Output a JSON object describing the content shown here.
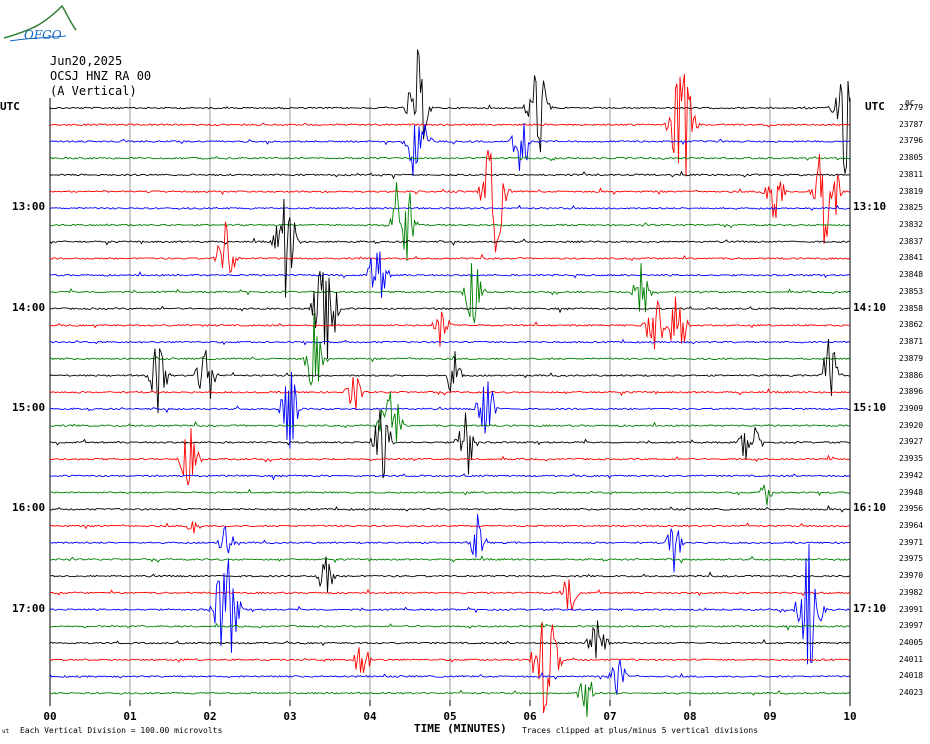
{
  "header": {
    "logo_text": "OFGO",
    "date": "Jun20,2025",
    "station": "OCSJ HNZ RA 00",
    "component": "(A Vertical)"
  },
  "utc_left": "UTC",
  "utc_right": "UTC",
  "footer": {
    "scale_note": "Each Vertical Division =  100.00 microvolts",
    "clip_note": "Traces clipped at plus/minus 5 vertical divisions",
    "corner_mark": "ut"
  },
  "colors": {
    "trace_cycle": [
      "#000000",
      "#ff0000",
      "#0000ff",
      "#008000"
    ],
    "grid": "#808080"
  },
  "chart_data": {
    "type": "line",
    "title": "Jun20,2025 OCSJ HNZ RA 00 (A Vertical)",
    "xlabel": "TIME (MINUTES)",
    "xlim": [
      0,
      10
    ],
    "x_ticks": [
      "00",
      "01",
      "02",
      "03",
      "04",
      "05",
      "06",
      "07",
      "08",
      "09",
      "10"
    ],
    "left_time_labels": [
      "13:00",
      "14:00",
      "15:00",
      "16:00",
      "17:00"
    ],
    "right_time_labels": [
      "13:10",
      "14:10",
      "15:10",
      "16:10",
      "17:10"
    ],
    "right_top_label": "0C",
    "trace_ids": [
      "23779",
      "23787",
      "23796",
      "23805",
      "23811",
      "23819",
      "23825",
      "23832",
      "23837",
      "23841",
      "23848",
      "23853",
      "23858",
      "23862",
      "23871",
      "23879",
      "23886",
      "23896",
      "23909",
      "23920",
      "23927",
      "23935",
      "23942",
      "23948",
      "23956",
      "23964",
      "23971",
      "23975",
      "23970",
      "23982",
      "23991",
      "23997",
      "24005",
      "24011",
      "24018",
      "24023"
    ],
    "events": [
      {
        "trace": 0,
        "minute": 4.6,
        "amp": 4
      },
      {
        "trace": 0,
        "minute": 6.1,
        "amp": 4
      },
      {
        "trace": 0,
        "minute": 9.95,
        "amp": 5
      },
      {
        "trace": 1,
        "minute": 7.9,
        "amp": 5
      },
      {
        "trace": 2,
        "minute": 4.6,
        "amp": 4
      },
      {
        "trace": 2,
        "minute": 5.9,
        "amp": 3
      },
      {
        "trace": 5,
        "minute": 5.55,
        "amp": 5
      },
      {
        "trace": 5,
        "minute": 9.05,
        "amp": 3
      },
      {
        "trace": 5,
        "minute": 9.7,
        "amp": 5
      },
      {
        "trace": 7,
        "minute": 4.4,
        "amp": 5
      },
      {
        "trace": 8,
        "minute": 2.95,
        "amp": 4
      },
      {
        "trace": 9,
        "minute": 2.2,
        "amp": 3
      },
      {
        "trace": 10,
        "minute": 4.1,
        "amp": 3
      },
      {
        "trace": 11,
        "minute": 5.3,
        "amp": 3
      },
      {
        "trace": 11,
        "minute": 7.4,
        "amp": 3
      },
      {
        "trace": 12,
        "minute": 3.45,
        "amp": 5
      },
      {
        "trace": 13,
        "minute": 4.9,
        "amp": 2
      },
      {
        "trace": 13,
        "minute": 7.55,
        "amp": 3
      },
      {
        "trace": 13,
        "minute": 7.85,
        "amp": 3
      },
      {
        "trace": 15,
        "minute": 3.3,
        "amp": 3
      },
      {
        "trace": 16,
        "minute": 1.35,
        "amp": 3
      },
      {
        "trace": 16,
        "minute": 1.95,
        "amp": 3
      },
      {
        "trace": 16,
        "minute": 5.05,
        "amp": 2
      },
      {
        "trace": 16,
        "minute": 9.75,
        "amp": 3
      },
      {
        "trace": 17,
        "minute": 3.8,
        "amp": 2
      },
      {
        "trace": 18,
        "minute": 3.0,
        "amp": 3
      },
      {
        "trace": 18,
        "minute": 5.45,
        "amp": 3
      },
      {
        "trace": 19,
        "minute": 4.25,
        "amp": 4
      },
      {
        "trace": 20,
        "minute": 4.15,
        "amp": 3
      },
      {
        "trace": 20,
        "minute": 5.2,
        "amp": 3
      },
      {
        "trace": 20,
        "minute": 8.75,
        "amp": 3
      },
      {
        "trace": 21,
        "minute": 1.75,
        "amp": 3
      },
      {
        "trace": 23,
        "minute": 8.95,
        "amp": 1
      },
      {
        "trace": 25,
        "minute": 1.8,
        "amp": 1
      },
      {
        "trace": 26,
        "minute": 2.2,
        "amp": 2
      },
      {
        "trace": 26,
        "minute": 5.35,
        "amp": 2
      },
      {
        "trace": 26,
        "minute": 7.8,
        "amp": 2
      },
      {
        "trace": 28,
        "minute": 3.45,
        "amp": 2
      },
      {
        "trace": 29,
        "minute": 6.5,
        "amp": 2
      },
      {
        "trace": 30,
        "minute": 2.2,
        "amp": 5
      },
      {
        "trace": 30,
        "minute": 9.5,
        "amp": 5
      },
      {
        "trace": 32,
        "minute": 6.85,
        "amp": 3
      },
      {
        "trace": 33,
        "minute": 3.9,
        "amp": 2
      },
      {
        "trace": 33,
        "minute": 6.2,
        "amp": 5
      },
      {
        "trace": 34,
        "minute": 7.1,
        "amp": 2
      },
      {
        "trace": 35,
        "minute": 6.7,
        "amp": 2
      }
    ],
    "grid": true
  }
}
